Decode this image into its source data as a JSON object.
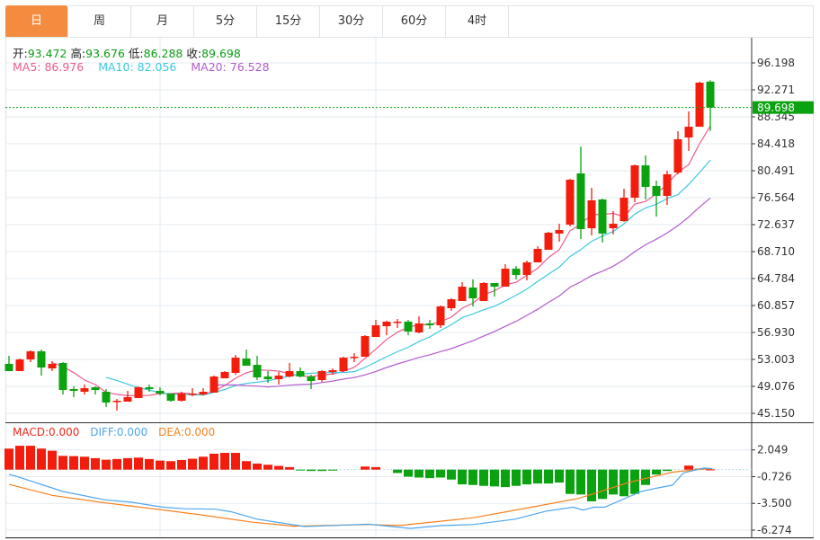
{
  "tabs": [
    {
      "label": "日",
      "active": true
    },
    {
      "label": "周"
    },
    {
      "label": "月"
    },
    {
      "label": "5分"
    },
    {
      "label": "15分"
    },
    {
      "label": "30分"
    },
    {
      "label": "60分"
    },
    {
      "label": "4时"
    }
  ],
  "ohlc_info": {
    "open_label": "开:",
    "open": "93.472",
    "high_label": "高:",
    "high": "93.676",
    "low_label": "低:",
    "low": "86.288",
    "close_label": "收:",
    "close": "89.698"
  },
  "ma_info": {
    "ma5": "MA5: 86.976",
    "ma10": "MA10: 82.056",
    "ma20": "MA20: 76.528"
  },
  "macd_info": {
    "macd": "MACD:0.000",
    "diff": "DIFF:0.000",
    "dea": "DEA:0.000"
  },
  "colors": {
    "up": "#f31d0d",
    "down": "#0aa30f",
    "ma5": "#ef5b8c",
    "ma10": "#3cc9df",
    "ma20": "#b35ccf",
    "diff": "#4ea6ee",
    "dea": "#f5821f",
    "active_tab": "#f38c3f"
  },
  "chart_data": {
    "type": "candlestick",
    "price_axis_ticks": [
      "96.198",
      "92.271",
      "88.345",
      "84.418",
      "80.491",
      "76.564",
      "72.637",
      "68.710",
      "64.784",
      "60.857",
      "56.930",
      "53.003",
      "49.076",
      "45.150"
    ],
    "last_price": "89.698",
    "candles_ohlc": [
      [
        52.35,
        53.52,
        51.3,
        51.3
      ],
      [
        51.3,
        53.13,
        51.3,
        53.0
      ],
      [
        53.0,
        54.31,
        52.61,
        54.18
      ],
      [
        54.18,
        54.44,
        50.64,
        51.82
      ],
      [
        51.69,
        52.74,
        51.3,
        52.35
      ],
      [
        52.48,
        52.61,
        47.89,
        48.55
      ],
      [
        48.68,
        49.07,
        47.5,
        48.42
      ],
      [
        48.29,
        49.33,
        47.89,
        48.81
      ],
      [
        48.94,
        49.07,
        47.89,
        48.55
      ],
      [
        48.29,
        48.68,
        46.06,
        46.72
      ],
      [
        46.85,
        47.24,
        45.54,
        46.98
      ],
      [
        46.85,
        48.42,
        46.85,
        47.5
      ],
      [
        47.37,
        49.07,
        47.37,
        48.94
      ],
      [
        48.94,
        49.33,
        48.29,
        48.68
      ],
      [
        48.42,
        48.94,
        47.76,
        48.03
      ],
      [
        48.03,
        48.03,
        46.85,
        46.98
      ],
      [
        46.98,
        48.29,
        46.85,
        48.03
      ],
      [
        47.89,
        48.81,
        47.63,
        48.03
      ],
      [
        47.89,
        48.81,
        47.76,
        48.29
      ],
      [
        48.16,
        50.64,
        48.16,
        50.51
      ],
      [
        50.25,
        51.3,
        50.25,
        51.17
      ],
      [
        51.04,
        53.65,
        50.77,
        53.26
      ],
      [
        53.13,
        54.44,
        52.08,
        52.08
      ],
      [
        52.21,
        53.52,
        49.99,
        50.38
      ],
      [
        50.51,
        51.3,
        49.6,
        50.12
      ],
      [
        50.12,
        51.17,
        49.33,
        50.64
      ],
      [
        50.51,
        52.48,
        50.38,
        51.3
      ],
      [
        51.3,
        51.82,
        50.38,
        50.51
      ],
      [
        50.51,
        50.77,
        48.68,
        49.86
      ],
      [
        49.99,
        51.43,
        49.73,
        51.3
      ],
      [
        51.17,
        51.69,
        50.77,
        51.43
      ],
      [
        51.3,
        53.39,
        51.17,
        53.26
      ],
      [
        53.26,
        53.92,
        52.61,
        53.39
      ],
      [
        53.39,
        56.53,
        53.39,
        56.4
      ],
      [
        56.27,
        58.76,
        56.27,
        57.97
      ],
      [
        57.84,
        58.63,
        56.53,
        58.5
      ],
      [
        58.37,
        58.89,
        57.58,
        58.5
      ],
      [
        58.5,
        58.76,
        56.53,
        57.06
      ],
      [
        56.93,
        59.28,
        56.8,
        58.24
      ],
      [
        58.24,
        58.76,
        57.45,
        57.97
      ],
      [
        57.97,
        60.85,
        57.58,
        60.72
      ],
      [
        60.46,
        61.9,
        60.07,
        61.77
      ],
      [
        61.51,
        64.26,
        61.51,
        63.6
      ],
      [
        63.47,
        64.65,
        60.72,
        61.9
      ],
      [
        61.51,
        64.26,
        61.51,
        64.13
      ],
      [
        64.13,
        64.13,
        62.16,
        63.6
      ],
      [
        63.6,
        66.88,
        63.6,
        66.22
      ],
      [
        66.22,
        66.61,
        64.65,
        65.3
      ],
      [
        65.3,
        67.4,
        64.52,
        67.14
      ],
      [
        67.14,
        69.49,
        67.14,
        69.1
      ],
      [
        68.97,
        71.59,
        68.97,
        71.46
      ],
      [
        71.33,
        72.77,
        70.15,
        71.85
      ],
      [
        72.63,
        79.31,
        72.37,
        79.18
      ],
      [
        80.1,
        84.02,
        70.54,
        71.98
      ],
      [
        72.11,
        78.0,
        71.06,
        76.17
      ],
      [
        76.3,
        76.43,
        70.02,
        71.33
      ],
      [
        72.11,
        74.6,
        71.2,
        72.77
      ],
      [
        73.16,
        77.87,
        73.03,
        76.56
      ],
      [
        76.56,
        81.4,
        75.91,
        81.27
      ],
      [
        81.27,
        82.71,
        76.3,
        78.13
      ],
      [
        78.26,
        79.05,
        73.81,
        76.82
      ],
      [
        76.82,
        80.49,
        75.51,
        79.97
      ],
      [
        80.23,
        86.25,
        79.97,
        85.07
      ],
      [
        85.33,
        89.13,
        83.37,
        86.9
      ],
      [
        86.9,
        93.45,
        86.9,
        93.32
      ],
      [
        93.472,
        93.676,
        86.288,
        89.698
      ]
    ],
    "ma_periods": [
      5,
      10,
      20
    ],
    "macd_axis_ticks": [
      "2.049",
      "-0.726",
      "-3.500",
      "-6.274"
    ],
    "macd_hist": [
      2.18,
      2.48,
      2.48,
      2.18,
      1.96,
      1.43,
      1.4,
      1.34,
      1.19,
      1.03,
      1.1,
      1.19,
      1.25,
      1.1,
      0.94,
      0.88,
      1.0,
      1.13,
      1.34,
      1.65,
      1.74,
      1.74,
      0.88,
      0.63,
      0.51,
      0.39,
      0.26,
      -0.05,
      -0.14,
      -0.14,
      -0.1,
      0.0,
      0.0,
      0.32,
      0.26,
      0.0,
      -0.35,
      -0.73,
      -0.82,
      -0.88,
      -0.82,
      -1.03,
      -1.53,
      -1.59,
      -1.68,
      -1.74,
      -1.81,
      -1.68,
      -1.53,
      -1.44,
      -1.44,
      -1.34,
      -2.52,
      -2.58,
      -3.29,
      -3.04,
      -2.58,
      -2.76,
      -2.52,
      -1.59,
      -0.51,
      -0.14,
      0.0,
      0.42,
      0.1,
      0.02
    ],
    "diff_points": [
      [
        0,
        -0.5
      ],
      [
        0.6,
        -0.66
      ],
      [
        5,
        -2.27
      ],
      [
        8.9,
        -3.13
      ],
      [
        11.3,
        -3.38
      ],
      [
        14.3,
        -3.9
      ],
      [
        16.2,
        -4.06
      ],
      [
        19.1,
        -4.1
      ],
      [
        20.6,
        -4.37
      ],
      [
        23,
        -5.14
      ],
      [
        27.4,
        -5.9
      ],
      [
        33.3,
        -5.66
      ],
      [
        37.2,
        -6.1
      ],
      [
        40.1,
        -5.8
      ],
      [
        43,
        -5.7
      ],
      [
        46.9,
        -5.14
      ],
      [
        49.8,
        -4.3
      ],
      [
        52.3,
        -3.9
      ],
      [
        53.2,
        -4.2
      ],
      [
        54.2,
        -3.9
      ],
      [
        55.2,
        -3.9
      ],
      [
        58.6,
        -2.27
      ],
      [
        60.1,
        -1.9
      ],
      [
        61.5,
        -1.6
      ],
      [
        62.5,
        -0.35
      ],
      [
        64.4,
        0.17
      ],
      [
        65.2,
        0.1
      ]
    ],
    "dea_points": [
      [
        0,
        -1.53
      ],
      [
        4.0,
        -2.67
      ],
      [
        8.9,
        -3.44
      ],
      [
        13.8,
        -4.12
      ],
      [
        17.7,
        -4.68
      ],
      [
        22.6,
        -5.45
      ],
      [
        26.4,
        -5.86
      ],
      [
        33.3,
        -5.7
      ],
      [
        36.2,
        -5.8
      ],
      [
        43,
        -5.0
      ],
      [
        47.9,
        -4.0
      ],
      [
        52.8,
        -2.98
      ],
      [
        57.6,
        -1.28
      ],
      [
        61.5,
        -0.26
      ],
      [
        64.4,
        0.08
      ],
      [
        65.2,
        0.05
      ]
    ]
  }
}
